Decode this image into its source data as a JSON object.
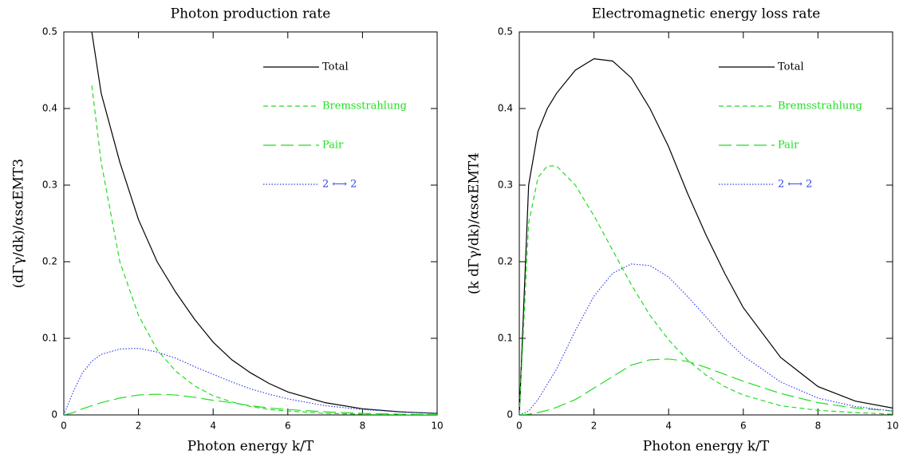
{
  "chart_data": [
    {
      "type": "line",
      "title": "Photon production rate",
      "xlabel": "Photon energy k/T",
      "ylabel": "(dΓγ/dk)/αsαEMT3",
      "x": [
        0,
        0.25,
        0.5,
        0.75,
        1,
        1.5,
        2,
        2.5,
        3,
        3.5,
        4,
        4.5,
        5,
        5.5,
        6,
        7,
        8,
        9,
        10
      ],
      "xlim": [
        0,
        10
      ],
      "ylim": [
        0,
        0.5
      ],
      "xticks": [
        0,
        2,
        4,
        6,
        8,
        10
      ],
      "yticks": [
        0,
        0.1,
        0.2,
        0.3,
        0.4,
        0.5
      ],
      "series": [
        {
          "name": "Total",
          "color": "#000000",
          "dash": "solid",
          "values": [
            null,
            null,
            null,
            0.5,
            0.42,
            0.33,
            0.255,
            0.2,
            0.16,
            0.125,
            0.095,
            0.072,
            0.055,
            0.041,
            0.03,
            0.016,
            0.008,
            0.004,
            0.002
          ]
        },
        {
          "name": "Bremsstrahlung",
          "color": "#22dd22",
          "dash": "dashed",
          "values": [
            null,
            null,
            null,
            0.43,
            0.33,
            0.2,
            0.13,
            0.085,
            0.057,
            0.038,
            0.025,
            0.017,
            0.011,
            0.007,
            0.005,
            0.002,
            0.001,
            0,
            0
          ]
        },
        {
          "name": "Pair",
          "color": "#22dd22",
          "dash": "longdash",
          "values": [
            0,
            0.003,
            0.008,
            0.012,
            0.016,
            0.022,
            0.026,
            0.027,
            0.026,
            0.023,
            0.019,
            0.016,
            0.012,
            0.009,
            0.007,
            0.004,
            0.002,
            0.001,
            0.0005
          ]
        },
        {
          "name": "2 ⟷ 2",
          "color": "#3344ee",
          "dash": "dotted",
          "values": [
            0,
            0.03,
            0.055,
            0.07,
            0.079,
            0.086,
            0.087,
            0.082,
            0.074,
            0.063,
            0.053,
            0.043,
            0.034,
            0.027,
            0.021,
            0.012,
            0.007,
            0.004,
            0.002
          ]
        }
      ]
    },
    {
      "type": "line",
      "title": "Electromagnetic energy loss rate",
      "xlabel": "Photon energy k/T",
      "ylabel": "(k dΓγ/dk)/αsαEMT4",
      "x": [
        0,
        0.25,
        0.5,
        0.75,
        1,
        1.5,
        2,
        2.5,
        3,
        3.5,
        4,
        4.5,
        5,
        5.5,
        6,
        7,
        8,
        9,
        10
      ],
      "xlim": [
        0,
        10
      ],
      "ylim": [
        0,
        0.5
      ],
      "xticks": [
        0,
        2,
        4,
        6,
        8,
        10
      ],
      "yticks": [
        0,
        0.1,
        0.2,
        0.3,
        0.4,
        0.5
      ],
      "series": [
        {
          "name": "Total",
          "color": "#000000",
          "dash": "solid",
          "values": [
            0,
            0.3,
            0.37,
            0.4,
            0.42,
            0.45,
            0.465,
            0.462,
            0.44,
            0.4,
            0.35,
            0.29,
            0.235,
            0.185,
            0.14,
            0.075,
            0.037,
            0.018,
            0.009
          ]
        },
        {
          "name": "Bremsstrahlung",
          "color": "#22dd22",
          "dash": "dashed",
          "values": [
            0,
            0.25,
            0.31,
            0.325,
            0.325,
            0.3,
            0.26,
            0.215,
            0.17,
            0.13,
            0.098,
            0.072,
            0.052,
            0.037,
            0.026,
            0.012,
            0.006,
            0.003,
            0.001
          ]
        },
        {
          "name": "Pair",
          "color": "#22dd22",
          "dash": "longdash",
          "values": [
            0,
            0.001,
            0.003,
            0.006,
            0.01,
            0.02,
            0.035,
            0.05,
            0.065,
            0.072,
            0.073,
            0.07,
            0.062,
            0.053,
            0.044,
            0.028,
            0.016,
            0.009,
            0.005
          ]
        },
        {
          "name": "2 ⟷ 2",
          "color": "#3344ee",
          "dash": "dotted",
          "values": [
            0,
            0.005,
            0.02,
            0.04,
            0.06,
            0.11,
            0.155,
            0.185,
            0.197,
            0.195,
            0.18,
            0.155,
            0.128,
            0.1,
            0.077,
            0.043,
            0.022,
            0.011,
            0.005
          ]
        }
      ]
    }
  ]
}
